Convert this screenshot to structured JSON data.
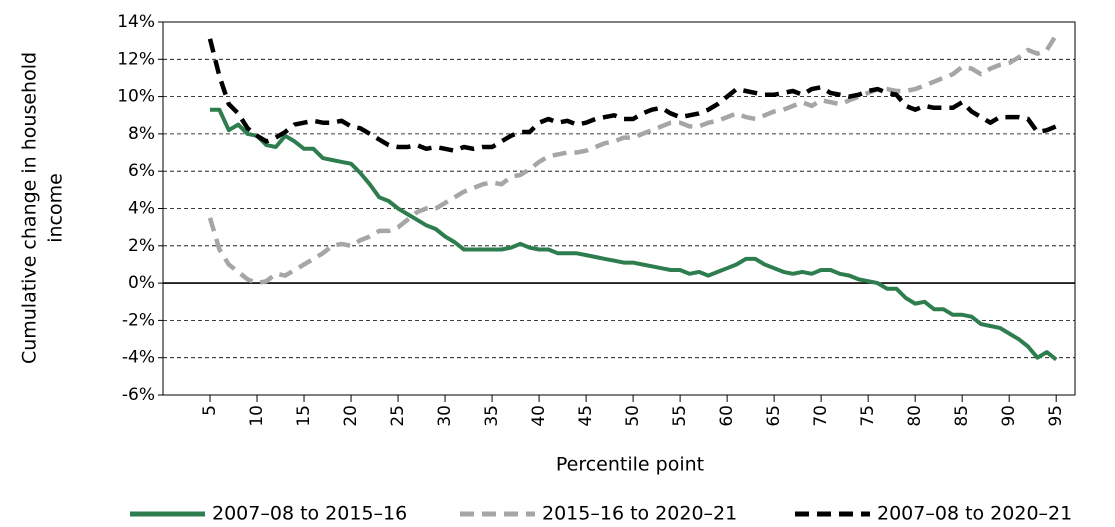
{
  "chart_data": {
    "type": "line",
    "ylabel": [
      "Cumulative change in household",
      "income"
    ],
    "xlabel": "Percentile point",
    "x": [
      5,
      6,
      7,
      8,
      9,
      10,
      11,
      12,
      13,
      14,
      15,
      16,
      17,
      18,
      19,
      20,
      21,
      22,
      23,
      24,
      25,
      26,
      27,
      28,
      29,
      30,
      31,
      32,
      33,
      34,
      35,
      36,
      37,
      38,
      39,
      40,
      41,
      42,
      43,
      44,
      45,
      46,
      47,
      48,
      49,
      50,
      51,
      52,
      53,
      54,
      55,
      56,
      57,
      58,
      59,
      60,
      61,
      62,
      63,
      64,
      65,
      66,
      67,
      68,
      69,
      70,
      71,
      72,
      73,
      74,
      75,
      76,
      77,
      78,
      79,
      80,
      81,
      82,
      83,
      84,
      85,
      86,
      87,
      88,
      89,
      90,
      91,
      92,
      93,
      94,
      95
    ],
    "series": [
      {
        "name": "2007–08 to 2015–16",
        "color": "#2e7d4f",
        "dashed": false,
        "values": [
          9.3,
          9.3,
          8.2,
          8.5,
          8.0,
          7.9,
          7.4,
          7.3,
          7.9,
          7.6,
          7.2,
          7.2,
          6.7,
          6.6,
          6.5,
          6.4,
          5.9,
          5.3,
          4.6,
          4.4,
          4.0,
          3.7,
          3.4,
          3.1,
          2.9,
          2.5,
          2.2,
          1.8,
          1.8,
          1.8,
          1.8,
          1.8,
          1.9,
          2.1,
          1.9,
          1.8,
          1.8,
          1.6,
          1.6,
          1.6,
          1.5,
          1.4,
          1.3,
          1.2,
          1.1,
          1.1,
          1.0,
          0.9,
          0.8,
          0.7,
          0.7,
          0.5,
          0.6,
          0.4,
          0.6,
          0.8,
          1.0,
          1.3,
          1.3,
          1.0,
          0.8,
          0.6,
          0.5,
          0.6,
          0.5,
          0.7,
          0.7,
          0.5,
          0.4,
          0.2,
          0.1,
          0.0,
          -0.3,
          -0.3,
          -0.8,
          -1.1,
          -1.0,
          -1.4,
          -1.4,
          -1.7,
          -1.7,
          -1.8,
          -2.2,
          -2.3,
          -2.4,
          -2.7,
          -3.0,
          -3.4,
          -4.0,
          -3.7,
          -4.1
        ]
      },
      {
        "name": "2015–16 to 2020–21",
        "color": "#a6a6a6",
        "dashed": true,
        "values": [
          3.5,
          1.8,
          1.0,
          0.6,
          0.2,
          0.0,
          0.1,
          0.5,
          0.4,
          0.7,
          1.0,
          1.3,
          1.6,
          2.0,
          2.1,
          2.0,
          2.3,
          2.5,
          2.8,
          2.8,
          3.0,
          3.4,
          3.8,
          4.0,
          4.0,
          4.3,
          4.6,
          4.9,
          5.1,
          5.3,
          5.4,
          5.3,
          5.7,
          5.8,
          6.1,
          6.5,
          6.8,
          6.9,
          7.0,
          7.0,
          7.1,
          7.3,
          7.5,
          7.6,
          7.8,
          7.8,
          8.0,
          8.2,
          8.4,
          8.6,
          8.6,
          8.4,
          8.4,
          8.6,
          8.7,
          8.9,
          9.1,
          8.9,
          8.8,
          9.0,
          9.2,
          9.3,
          9.5,
          9.7,
          9.5,
          9.8,
          9.7,
          9.6,
          9.8,
          10.0,
          10.2,
          10.4,
          10.4,
          10.3,
          10.3,
          10.4,
          10.6,
          10.8,
          11.0,
          11.2,
          11.6,
          11.5,
          11.2,
          11.5,
          11.7,
          11.8,
          12.1,
          12.5,
          12.3,
          12.5,
          13.3
        ]
      },
      {
        "name": "2007–08 to 2020–21",
        "color": "#000000",
        "dashed": true,
        "values": [
          13.1,
          11.1,
          9.6,
          9.1,
          8.3,
          7.9,
          7.6,
          7.8,
          8.1,
          8.5,
          8.6,
          8.7,
          8.6,
          8.6,
          8.7,
          8.4,
          8.3,
          8.0,
          7.7,
          7.4,
          7.3,
          7.3,
          7.4,
          7.2,
          7.3,
          7.2,
          7.1,
          7.3,
          7.2,
          7.3,
          7.3,
          7.6,
          7.9,
          8.1,
          8.1,
          8.6,
          8.8,
          8.6,
          8.7,
          8.5,
          8.6,
          8.8,
          8.9,
          9.0,
          8.8,
          8.8,
          9.1,
          9.3,
          9.4,
          9.1,
          8.9,
          9.0,
          9.1,
          9.3,
          9.6,
          10.0,
          10.4,
          10.3,
          10.2,
          10.1,
          10.1,
          10.2,
          10.3,
          10.1,
          10.4,
          10.5,
          10.2,
          10.1,
          10.0,
          10.1,
          10.3,
          10.4,
          10.2,
          10.1,
          9.5,
          9.3,
          9.5,
          9.4,
          9.4,
          9.4,
          9.7,
          9.2,
          8.9,
          8.6,
          8.9,
          8.9,
          8.9,
          8.8,
          8.1,
          8.2,
          8.4
        ]
      }
    ],
    "xlim": [
      0,
      97
    ],
    "xticks": [
      5,
      10,
      15,
      20,
      25,
      30,
      35,
      40,
      45,
      50,
      55,
      60,
      65,
      70,
      75,
      80,
      85,
      90,
      95
    ],
    "ylim": [
      -6,
      14
    ],
    "yticks": [
      {
        "value": -6,
        "label": "-6%"
      },
      {
        "value": -4,
        "label": "-4%"
      },
      {
        "value": -2,
        "label": "-2%"
      },
      {
        "value": 0,
        "label": "0%"
      },
      {
        "value": 2,
        "label": "2%"
      },
      {
        "value": 4,
        "label": "4%"
      },
      {
        "value": 6,
        "label": "6%"
      },
      {
        "value": 8,
        "label": "8%"
      },
      {
        "value": 10,
        "label": "10%"
      },
      {
        "value": 12,
        "label": "12%"
      },
      {
        "value": 14,
        "label": "14%"
      }
    ],
    "grid": true,
    "legend": "bottom"
  }
}
